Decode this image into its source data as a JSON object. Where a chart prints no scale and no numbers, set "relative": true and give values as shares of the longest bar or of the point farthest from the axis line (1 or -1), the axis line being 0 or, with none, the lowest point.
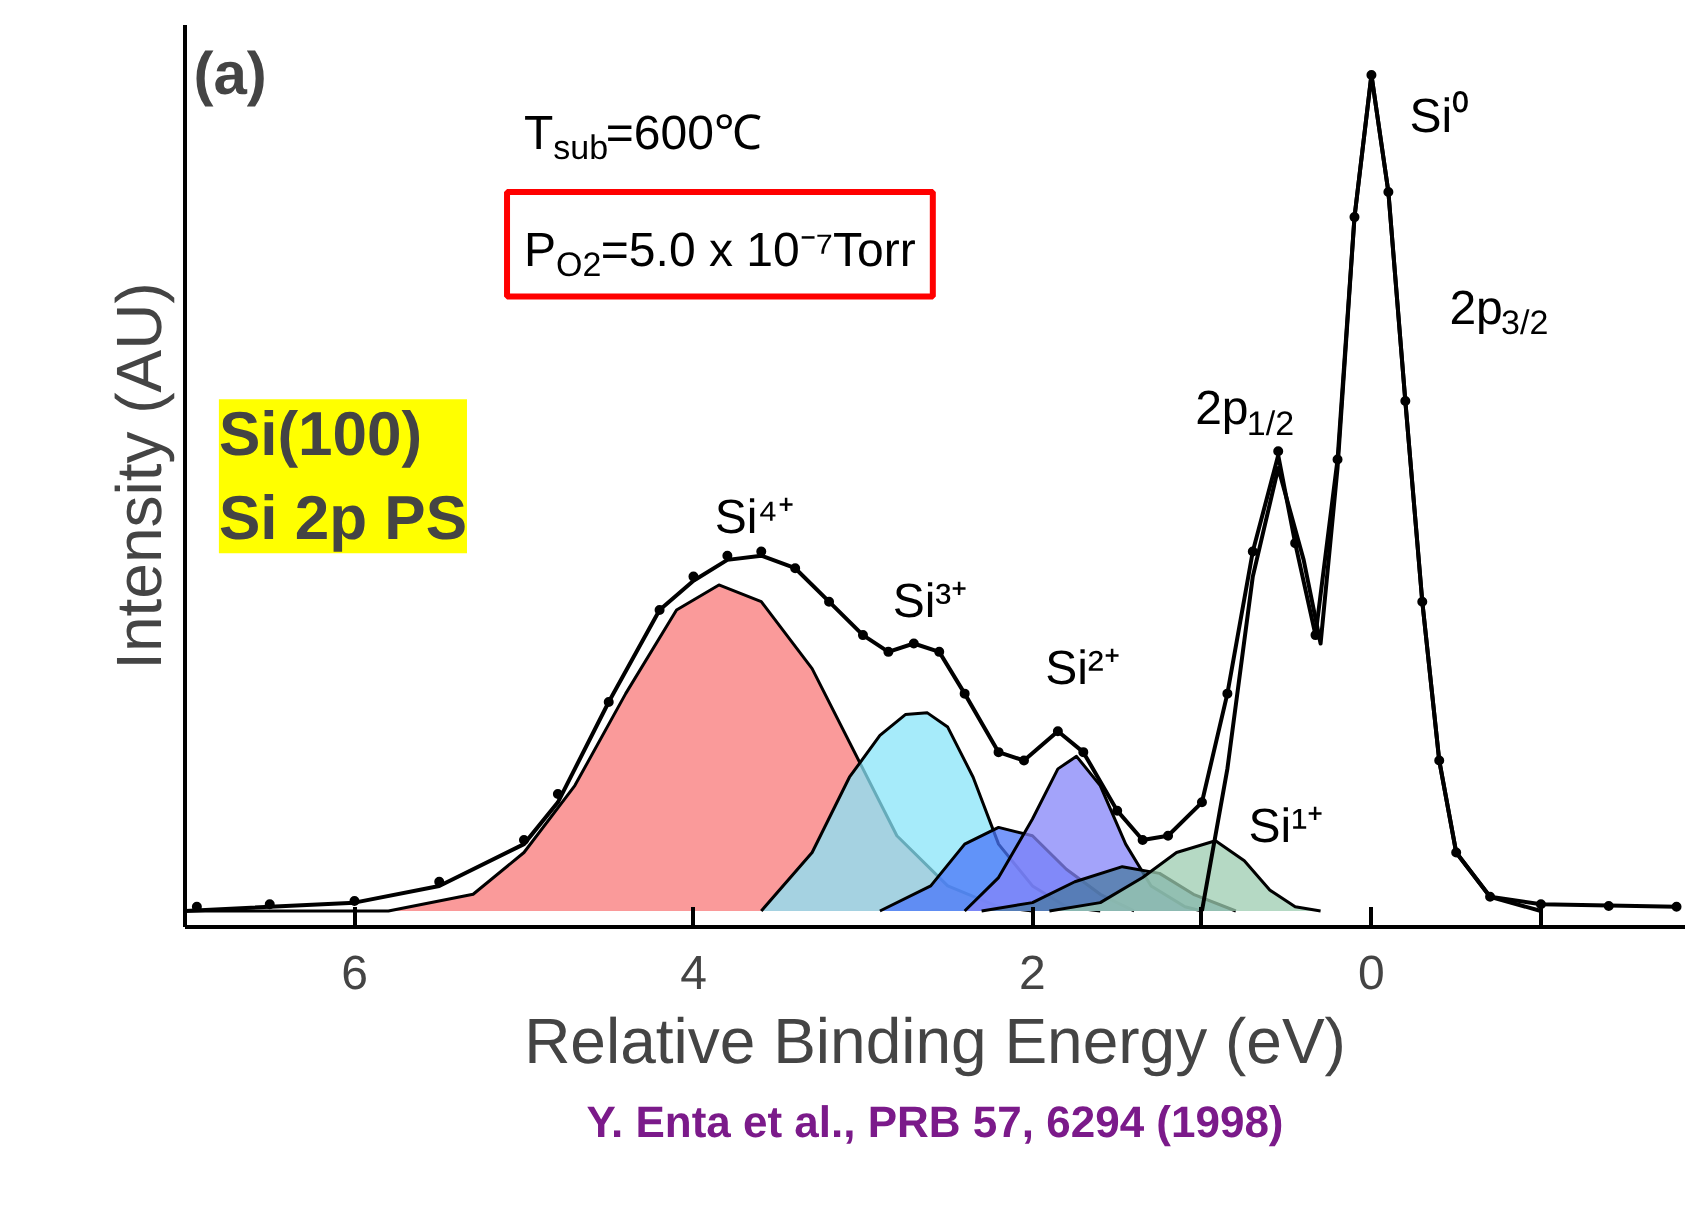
{
  "chart_data": {
    "type": "area",
    "relative": true,
    "xlabel": "Relative Binding Energy (eV)",
    "ylabel": "Intensity (AU)",
    "xlim": [
      7,
      -1.85
    ],
    "xticks": [
      6,
      4,
      2,
      0,
      {
        "value": 1,
        "label": null
      },
      {
        "value": -1,
        "label": null
      }
    ],
    "grid": false,
    "series": [
      {
        "color": "#f87878",
        "x": [
          7,
          5.8,
          5.3,
          5.0,
          4.7,
          4.4,
          4.1,
          3.85,
          3.6,
          3.3,
          3.0,
          2.8,
          2.5,
          2.2,
          2.0
        ],
        "values": [
          0,
          0,
          0.02,
          0.07,
          0.15,
          0.26,
          0.36,
          0.39,
          0.37,
          0.29,
          0.17,
          0.09,
          0.03,
          0.005,
          0
        ]
      },
      {
        "color": "#88e4f8",
        "x": [
          3.6,
          3.3,
          3.08,
          2.9,
          2.75,
          2.62,
          2.5,
          2.35,
          2.2,
          2.0,
          1.8,
          1.6
        ],
        "values": [
          0,
          0.07,
          0.16,
          0.21,
          0.235,
          0.237,
          0.22,
          0.16,
          0.08,
          0.03,
          0.005,
          0
        ]
      },
      {
        "color": "#4a76f8",
        "x": [
          2.9,
          2.6,
          2.4,
          2.2,
          2.0,
          1.8,
          1.6,
          1.4
        ],
        "values": [
          0,
          0.03,
          0.08,
          0.1,
          0.09,
          0.05,
          0.02,
          0
        ]
      },
      {
        "color": "#8484f8",
        "x": [
          2.4,
          2.2,
          2.0,
          1.85,
          1.74,
          1.6,
          1.45,
          1.3,
          1.1,
          1.0
        ],
        "values": [
          0,
          0.04,
          0.11,
          0.17,
          0.185,
          0.15,
          0.08,
          0.03,
          0.005,
          0
        ]
      },
      {
        "color": "#4a7aa0",
        "x": [
          2.3,
          2.0,
          1.75,
          1.47,
          1.25,
          1.05,
          0.8
        ],
        "values": [
          0,
          0.01,
          0.035,
          0.053,
          0.045,
          0.02,
          0
        ]
      },
      {
        "color": "#9cccb0",
        "x": [
          1.9,
          1.6,
          1.35,
          1.15,
          0.92,
          0.75,
          0.6,
          0.45,
          0.3
        ],
        "values": [
          0,
          0.01,
          0.04,
          0.07,
          0.084,
          0.06,
          0.025,
          0.005,
          0
        ]
      },
      {
        "type": "line",
        "color": "#000000",
        "x": [
          1.0,
          0.85,
          0.7,
          0.55,
          0.4,
          0.3,
          0.2,
          0.1,
          0,
          -0.1,
          -0.2,
          -0.3,
          -0.4,
          -0.5,
          -0.7,
          -1.0
        ],
        "values": [
          0,
          0.17,
          0.4,
          0.53,
          0.42,
          0.32,
          0.53,
          0.83,
          1.0,
          0.86,
          0.61,
          0.37,
          0.18,
          0.07,
          0.017,
          0
        ]
      },
      {
        "type": "line",
        "color": "#000000",
        "x": [
          7,
          6,
          5.5,
          5,
          4.8,
          4.5,
          4.2,
          4.0,
          3.8,
          3.6,
          3.4,
          3.2,
          3.0,
          2.85,
          2.7,
          2.55,
          2.4,
          2.2,
          2.05,
          1.85,
          1.7,
          1.5,
          1.35,
          1.2,
          1.0,
          0.85,
          0.7,
          0.55,
          0.45,
          0.33,
          0.2,
          0.1,
          0,
          -0.1,
          -0.2,
          -0.3,
          -0.4,
          -0.5,
          -0.7,
          -1.0,
          -1.8
        ],
        "values": [
          0,
          0.01,
          0.03,
          0.08,
          0.13,
          0.25,
          0.36,
          0.395,
          0.42,
          0.425,
          0.41,
          0.37,
          0.33,
          0.31,
          0.32,
          0.31,
          0.26,
          0.19,
          0.18,
          0.215,
          0.19,
          0.12,
          0.085,
          0.09,
          0.13,
          0.26,
          0.43,
          0.545,
          0.44,
          0.33,
          0.54,
          0.83,
          1.0,
          0.86,
          0.61,
          0.37,
          0.18,
          0.07,
          0.017,
          0.008,
          0.005
        ]
      },
      {
        "type": "scatter",
        "color": "#000000",
        "marker": "circle",
        "x": [
          6.93,
          6.5,
          6,
          5.5,
          5,
          4.8,
          4.5,
          4.2,
          4.0,
          3.8,
          3.6,
          3.4,
          3.2,
          3.0,
          2.85,
          2.7,
          2.55,
          2.4,
          2.2,
          2.05,
          1.85,
          1.7,
          1.5,
          1.35,
          1.2,
          1.0,
          0.85,
          0.7,
          0.55,
          0.45,
          0.33,
          0.2,
          0.1,
          0,
          -0.1,
          -0.2,
          -0.3,
          -0.4,
          -0.5,
          -0.7,
          -1.0,
          -1.4,
          -1.8
        ],
        "values": [
          0.005,
          0.008,
          0.012,
          0.035,
          0.085,
          0.14,
          0.25,
          0.36,
          0.4,
          0.425,
          0.43,
          0.41,
          0.37,
          0.33,
          0.31,
          0.32,
          0.31,
          0.26,
          0.19,
          0.18,
          0.215,
          0.19,
          0.12,
          0.085,
          0.09,
          0.13,
          0.26,
          0.43,
          0.55,
          0.44,
          0.33,
          0.54,
          0.83,
          1.0,
          0.86,
          0.61,
          0.37,
          0.18,
          0.07,
          0.017,
          0.008,
          0.006,
          0.005
        ]
      }
    ],
    "annotations": [
      "(a)",
      "T$_{sub}$=600℃",
      "P$_{O2}$=5.0 x 10⁻⁷Torr",
      "Si(100)\nSi 2p PS",
      "Si⁴⁺",
      "Si³⁺",
      "Si²⁺",
      "Si¹⁺",
      "Si⁰",
      "2p$_{3/2}$",
      "2p$_{1/2}$",
      "Y. Enta et al., PRB 57, 6294 (1998)"
    ]
  }
}
